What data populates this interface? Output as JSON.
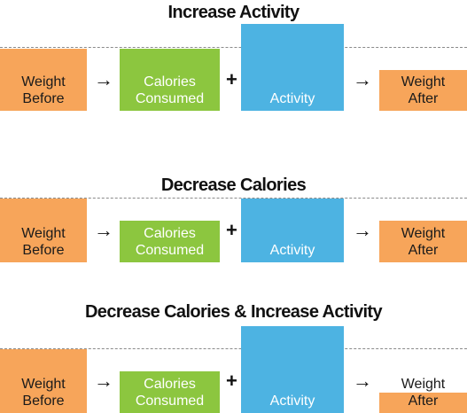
{
  "panels": [
    {
      "title": "Increase Activity",
      "weight_before": [
        "Weight",
        "Before"
      ],
      "calories": [
        "Calories",
        "Consumed"
      ],
      "plus": "+",
      "activity": "Activity",
      "arrow1": "→",
      "arrow2": "→",
      "weight_after": [
        "Weight",
        "After"
      ]
    },
    {
      "title": "Decrease Calories",
      "weight_before": [
        "Weight",
        "Before"
      ],
      "calories": [
        "Calories",
        "Consumed"
      ],
      "plus": "+",
      "activity": "Activity",
      "arrow1": "→",
      "arrow2": "→",
      "weight_after": [
        "Weight",
        "After"
      ]
    },
    {
      "title": "Decrease Calories & Increase Activity",
      "weight_before": [
        "Weight",
        "Before"
      ],
      "calories": [
        "Calories",
        "Consumed"
      ],
      "plus": "+",
      "activity": "Activity",
      "arrow1": "→",
      "arrow2": "→",
      "weight_after": [
        "Weight",
        "After"
      ]
    }
  ],
  "colors": {
    "weight": "#f7a55a",
    "calories": "#8cc63f",
    "activity": "#4db3e2"
  }
}
